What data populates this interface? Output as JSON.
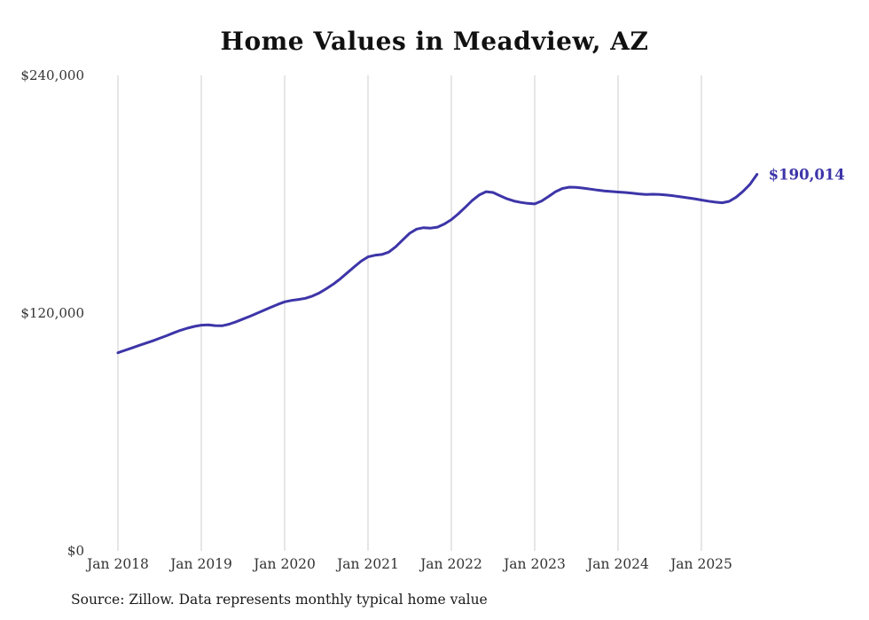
{
  "chart_data": {
    "type": "line",
    "title": "Home Values in Meadview, AZ",
    "series_name": "Typical home value",
    "source_note": "Source: Zillow. Data represents monthly typical home value",
    "end_label": "$190,014",
    "final_value": 190014,
    "ylim": [
      0,
      240000
    ],
    "yticks": [
      0,
      120000,
      240000
    ],
    "ytick_labels": [
      "$0",
      "$120,000",
      "$240,000"
    ],
    "xtick_month_indices": [
      0,
      12,
      24,
      36,
      48,
      60,
      72,
      84
    ],
    "xtick_labels": [
      "Jan 2018",
      "Jan 2019",
      "Jan 2020",
      "Jan 2021",
      "Jan 2022",
      "Jan 2023",
      "Jan 2024",
      "Jan 2025"
    ],
    "line_color": "#3d35a8",
    "end_label_color": "#3d35a8",
    "grid_color": "#cccccc",
    "axis_label_color": "#333333",
    "grid_on": true,
    "legend": "none",
    "x": [
      "2018-01",
      "2018-02",
      "2018-03",
      "2018-04",
      "2018-05",
      "2018-06",
      "2018-07",
      "2018-08",
      "2018-09",
      "2018-10",
      "2018-11",
      "2018-12",
      "2019-01",
      "2019-02",
      "2019-03",
      "2019-04",
      "2019-05",
      "2019-06",
      "2019-07",
      "2019-08",
      "2019-09",
      "2019-10",
      "2019-11",
      "2019-12",
      "2020-01",
      "2020-02",
      "2020-03",
      "2020-04",
      "2020-05",
      "2020-06",
      "2020-07",
      "2020-08",
      "2020-09",
      "2020-10",
      "2020-11",
      "2020-12",
      "2021-01",
      "2021-02",
      "2021-03",
      "2021-04",
      "2021-05",
      "2021-06",
      "2021-07",
      "2021-08",
      "2021-09",
      "2021-10",
      "2021-11",
      "2021-12",
      "2022-01",
      "2022-02",
      "2022-03",
      "2022-04",
      "2022-05",
      "2022-06",
      "2022-07",
      "2022-08",
      "2022-09",
      "2022-10",
      "2022-11",
      "2022-12",
      "2023-01",
      "2023-02",
      "2023-03",
      "2023-04",
      "2023-05",
      "2023-06",
      "2023-07",
      "2023-08",
      "2023-09",
      "2023-10",
      "2023-11",
      "2023-12",
      "2024-01",
      "2024-02",
      "2024-03",
      "2024-04",
      "2024-05",
      "2024-06",
      "2024-07",
      "2024-08",
      "2024-09",
      "2024-10",
      "2024-11",
      "2024-12",
      "2025-01",
      "2025-02",
      "2025-03",
      "2025-04",
      "2025-05",
      "2025-06",
      "2025-07",
      "2025-08",
      "2025-09"
    ],
    "values": [
      100000,
      101200,
      102400,
      103600,
      104800,
      106000,
      107300,
      108600,
      110000,
      111300,
      112400,
      113300,
      113900,
      114100,
      113700,
      113600,
      114400,
      115600,
      117000,
      118400,
      119900,
      121400,
      122900,
      124400,
      125700,
      126400,
      126900,
      127500,
      128600,
      130200,
      132300,
      134600,
      137300,
      140300,
      143300,
      146200,
      148400,
      149200,
      149600,
      150800,
      153500,
      157000,
      160300,
      162400,
      163100,
      162900,
      163400,
      165000,
      167200,
      170100,
      173400,
      176800,
      179600,
      181300,
      180900,
      179300,
      177700,
      176600,
      175900,
      175400,
      175100,
      176600,
      178900,
      181300,
      182900,
      183600,
      183500,
      183100,
      182600,
      182100,
      181700,
      181400,
      181100,
      180900,
      180600,
      180200,
      179900,
      180000,
      179900,
      179600,
      179200,
      178700,
      178200,
      177700,
      177100,
      176500,
      176000,
      175700,
      176400,
      178500,
      181500,
      185000,
      190014
    ]
  }
}
